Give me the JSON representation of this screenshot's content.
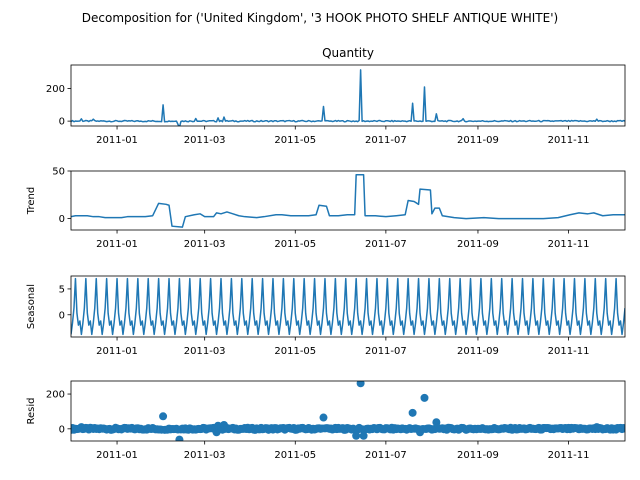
{
  "figure": {
    "title": "Decomposition for ('United Kingdom', '3 HOOK PHOTO SHELF ANTIQUE WHITE')"
  },
  "chart_data": [
    {
      "type": "line",
      "id": "observed",
      "title": "Quantity",
      "ylabel": "",
      "xlim": [
        "2010-12-01",
        "2011-12-09"
      ],
      "ylim": [
        -30,
        345
      ],
      "yticks": [
        0,
        200
      ],
      "xticks": [
        "2011-01",
        "2011-03",
        "2011-05",
        "2011-07",
        "2011-09",
        "2011-11"
      ],
      "baseline": 0,
      "noise": 4,
      "spikes": [
        {
          "x": "2010-12-08",
          "y": 14
        },
        {
          "x": "2010-12-16",
          "y": 12
        },
        {
          "x": "2011-02-01",
          "y": 100
        },
        {
          "x": "2011-02-11",
          "y": -20
        },
        {
          "x": "2011-02-12",
          "y": -38
        },
        {
          "x": "2011-02-23",
          "y": 16
        },
        {
          "x": "2011-03-10",
          "y": 20
        },
        {
          "x": "2011-03-14",
          "y": 25
        },
        {
          "x": "2011-05-20",
          "y": 90
        },
        {
          "x": "2011-06-14",
          "y": 315
        },
        {
          "x": "2011-07-19",
          "y": 110
        },
        {
          "x": "2011-07-27",
          "y": 210
        },
        {
          "x": "2011-08-04",
          "y": 45
        },
        {
          "x": "2011-08-22",
          "y": 15
        },
        {
          "x": "2011-11-20",
          "y": 12
        }
      ]
    },
    {
      "type": "line",
      "id": "trend",
      "title": "",
      "ylabel": "Trend",
      "xlim": [
        "2010-12-01",
        "2011-12-09"
      ],
      "ylim": [
        -12,
        50
      ],
      "yticks": [
        0,
        50
      ],
      "xticks": [
        "2011-01",
        "2011-03",
        "2011-05",
        "2011-07",
        "2011-09",
        "2011-11"
      ],
      "points": [
        [
          "2010-12-01",
          2
        ],
        [
          "2010-12-04",
          3
        ],
        [
          "2010-12-08",
          3
        ],
        [
          "2010-12-12",
          3
        ],
        [
          "2010-12-16",
          2
        ],
        [
          "2010-12-20",
          2
        ],
        [
          "2010-12-24",
          1
        ],
        [
          "2011-01-04",
          1
        ],
        [
          "2011-01-08",
          2
        ],
        [
          "2011-01-14",
          2
        ],
        [
          "2011-01-20",
          2
        ],
        [
          "2011-01-25",
          3
        ],
        [
          "2011-01-29",
          16
        ],
        [
          "2011-02-03",
          15
        ],
        [
          "2011-02-05",
          14
        ],
        [
          "2011-02-07",
          -8
        ],
        [
          "2011-02-14",
          -9
        ],
        [
          "2011-02-16",
          2
        ],
        [
          "2011-02-22",
          4
        ],
        [
          "2011-02-26",
          5
        ],
        [
          "2011-03-01",
          2
        ],
        [
          "2011-03-07",
          2
        ],
        [
          "2011-03-09",
          6
        ],
        [
          "2011-03-12",
          5
        ],
        [
          "2011-03-16",
          7
        ],
        [
          "2011-03-20",
          5
        ],
        [
          "2011-03-24",
          3
        ],
        [
          "2011-03-28",
          2
        ],
        [
          "2011-04-05",
          1
        ],
        [
          "2011-04-10",
          2
        ],
        [
          "2011-04-18",
          4
        ],
        [
          "2011-04-22",
          4
        ],
        [
          "2011-04-28",
          3
        ],
        [
          "2011-05-04",
          3
        ],
        [
          "2011-05-10",
          3
        ],
        [
          "2011-05-15",
          4
        ],
        [
          "2011-05-17",
          14
        ],
        [
          "2011-05-22",
          13
        ],
        [
          "2011-05-24",
          3
        ],
        [
          "2011-05-30",
          3
        ],
        [
          "2011-06-05",
          4
        ],
        [
          "2011-06-10",
          4
        ],
        [
          "2011-06-11",
          46
        ],
        [
          "2011-06-16",
          46
        ],
        [
          "2011-06-17",
          3
        ],
        [
          "2011-06-24",
          3
        ],
        [
          "2011-07-01",
          2
        ],
        [
          "2011-07-08",
          3
        ],
        [
          "2011-07-14",
          4
        ],
        [
          "2011-07-16",
          19
        ],
        [
          "2011-07-20",
          18
        ],
        [
          "2011-07-23",
          15
        ],
        [
          "2011-07-24",
          31
        ],
        [
          "2011-07-31",
          30
        ],
        [
          "2011-08-01",
          5
        ],
        [
          "2011-08-03",
          11
        ],
        [
          "2011-08-06",
          11
        ],
        [
          "2011-08-08",
          3
        ],
        [
          "2011-08-16",
          1
        ],
        [
          "2011-08-24",
          0
        ],
        [
          "2011-09-05",
          1
        ],
        [
          "2011-09-15",
          0
        ],
        [
          "2011-10-01",
          0
        ],
        [
          "2011-10-15",
          0
        ],
        [
          "2011-10-25",
          1
        ],
        [
          "2011-11-02",
          4
        ],
        [
          "2011-11-08",
          6
        ],
        [
          "2011-11-14",
          5
        ],
        [
          "2011-11-18",
          6
        ],
        [
          "2011-11-24",
          3
        ],
        [
          "2011-12-01",
          4
        ],
        [
          "2011-12-09",
          4
        ]
      ]
    },
    {
      "type": "line",
      "id": "seasonal",
      "title": "",
      "ylabel": "Seasonal",
      "xlim": [
        "2010-12-01",
        "2011-12-09"
      ],
      "ylim": [
        -4.3,
        7.5
      ],
      "yticks": [
        0,
        5
      ],
      "xticks": [
        "2011-01",
        "2011-03",
        "2011-05",
        "2011-07",
        "2011-09",
        "2011-11"
      ],
      "period_days": 7,
      "cycle": [
        -3.8,
        -1.6,
        1.3,
        7.0,
        0.3,
        -2.0,
        -1.2
      ]
    },
    {
      "type": "scatter",
      "id": "resid",
      "title": "",
      "ylabel": "Resid",
      "xlim": [
        "2010-12-01",
        "2011-12-09"
      ],
      "ylim": [
        -70,
        275
      ],
      "yticks": [
        0,
        200
      ],
      "xticks": [
        "2011-01",
        "2011-03",
        "2011-05",
        "2011-07",
        "2011-09",
        "2011-11"
      ],
      "baseline": 0,
      "noise": 6,
      "outliers": [
        {
          "x": "2010-12-08",
          "y": 10
        },
        {
          "x": "2011-02-01",
          "y": 72
        },
        {
          "x": "2011-02-12",
          "y": -62
        },
        {
          "x": "2011-03-10",
          "y": 18
        },
        {
          "x": "2011-03-14",
          "y": 22
        },
        {
          "x": "2011-03-09",
          "y": -20
        },
        {
          "x": "2011-05-20",
          "y": 65
        },
        {
          "x": "2011-06-11",
          "y": -40
        },
        {
          "x": "2011-06-14",
          "y": 262
        },
        {
          "x": "2011-06-16",
          "y": -40
        },
        {
          "x": "2011-07-19",
          "y": 92
        },
        {
          "x": "2011-07-27",
          "y": 178
        },
        {
          "x": "2011-07-24",
          "y": -20
        },
        {
          "x": "2011-08-04",
          "y": 38
        },
        {
          "x": "2011-11-20",
          "y": 10
        }
      ]
    }
  ]
}
